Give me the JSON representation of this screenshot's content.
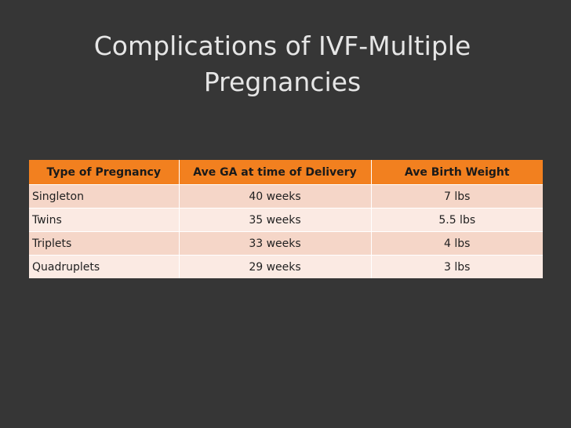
{
  "slide": {
    "title_line1": "Complications of IVF-Multiple",
    "title_line2": "Pregnancies"
  },
  "table": {
    "headers": [
      "Type of Pregnancy",
      "Ave GA at time of Delivery",
      "Ave Birth Weight"
    ],
    "rows": [
      [
        "Singleton",
        "40 weeks",
        "7 lbs"
      ],
      [
        "Twins",
        "35 weeks",
        "5.5 lbs"
      ],
      [
        "Triplets",
        "33 weeks",
        "4 lbs"
      ],
      [
        "Quadruplets",
        "29 weeks",
        "3 lbs"
      ]
    ]
  },
  "colors": {
    "background": "#363636",
    "title_text": "#e6e6e6",
    "header_fill": "#f2801f",
    "row_odd_fill": "#f5d6c8",
    "row_even_fill": "#fbeae3"
  }
}
